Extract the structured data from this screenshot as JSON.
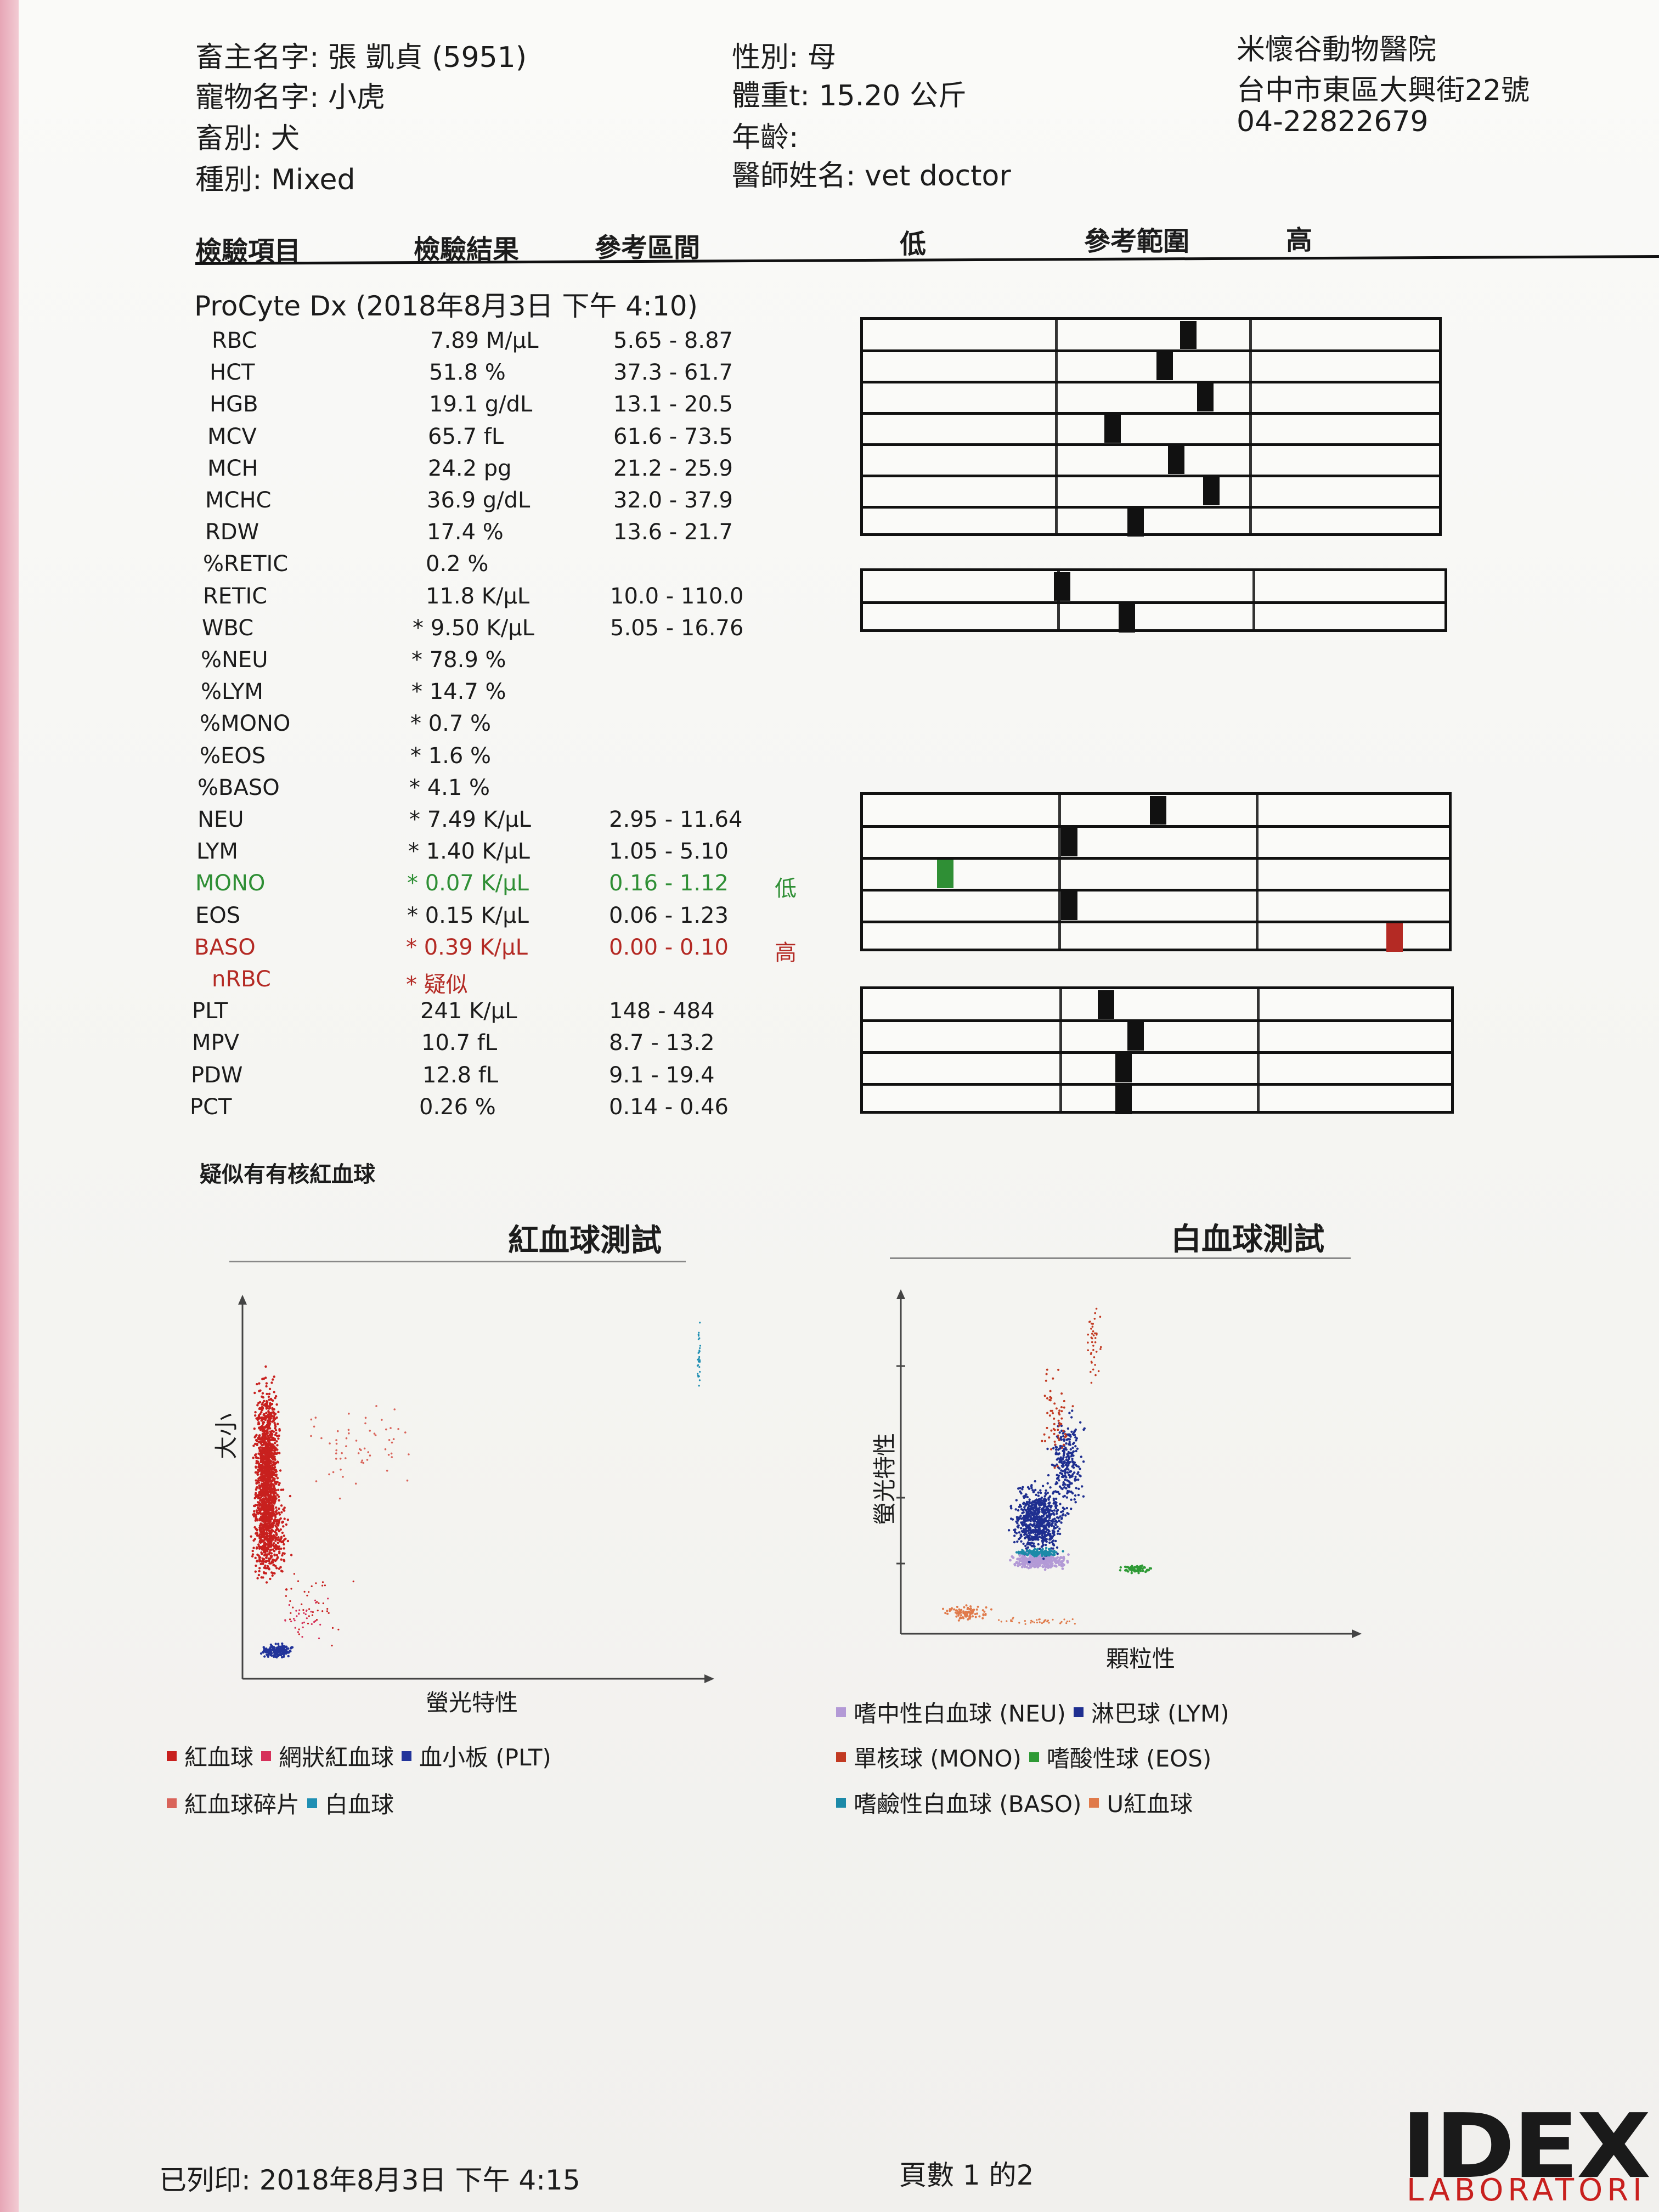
{
  "header": {
    "owner": "畜主名字: 張 凱貞 (5951)",
    "pet": "寵物名字: 小虎",
    "species": "畜別: 犬",
    "breed": "種別: Mixed",
    "sex": "性別: 母",
    "weight": "體重t: 15.20 公斤",
    "age": "年齡:",
    "doctor": "醫師姓名: vet doctor",
    "clinic_name": "米懷谷動物醫院",
    "clinic_address": "台中市東區大興街22號",
    "clinic_phone": "04-22822679"
  },
  "columns": {
    "item": "檢驗項目",
    "result": "檢驗結果",
    "interval": "參考區間",
    "low": "低",
    "range": "參考範圍",
    "high": "高"
  },
  "section_title": "ProCyte Dx (2018年8月3日 下午 4:10)",
  "results": [
    {
      "name": "RBC",
      "value": "7.89 M/µL",
      "ref": "5.65 - 8.87",
      "flag": "",
      "status": "normal"
    },
    {
      "name": "HCT",
      "value": "51.8 %",
      "ref": "37.3 - 61.7",
      "flag": "",
      "status": "normal"
    },
    {
      "name": "HGB",
      "value": "19.1 g/dL",
      "ref": "13.1 - 20.5",
      "flag": "",
      "status": "normal"
    },
    {
      "name": "MCV",
      "value": "65.7 fL",
      "ref": "61.6 - 73.5",
      "flag": "",
      "status": "normal"
    },
    {
      "name": "MCH",
      "value": "24.2 pg",
      "ref": "21.2 - 25.9",
      "flag": "",
      "status": "normal"
    },
    {
      "name": "MCHC",
      "value": "36.9 g/dL",
      "ref": "32.0 - 37.9",
      "flag": "",
      "status": "normal"
    },
    {
      "name": "RDW",
      "value": "17.4 %",
      "ref": "13.6 - 21.7",
      "flag": "",
      "status": "normal"
    },
    {
      "name": "%RETIC",
      "value": "0.2 %",
      "ref": "",
      "flag": "",
      "status": "normal"
    },
    {
      "name": "RETIC",
      "value": "11.8 K/µL",
      "ref": "10.0 - 110.0",
      "flag": "",
      "status": "normal"
    },
    {
      "name": "WBC",
      "value": "* 9.50 K/µL",
      "ref": "5.05 - 16.76",
      "flag": "",
      "status": "normal"
    },
    {
      "name": "%NEU",
      "value": "* 78.9 %",
      "ref": "",
      "flag": "",
      "status": "normal"
    },
    {
      "name": "%LYM",
      "value": "* 14.7 %",
      "ref": "",
      "flag": "",
      "status": "normal"
    },
    {
      "name": "%MONO",
      "value": "* 0.7 %",
      "ref": "",
      "flag": "",
      "status": "normal"
    },
    {
      "name": "%EOS",
      "value": "* 1.6 %",
      "ref": "",
      "flag": "",
      "status": "normal"
    },
    {
      "name": "%BASO",
      "value": "* 4.1 %",
      "ref": "",
      "flag": "",
      "status": "normal"
    },
    {
      "name": "NEU",
      "value": "* 7.49 K/µL",
      "ref": "2.95 - 11.64",
      "flag": "",
      "status": "normal"
    },
    {
      "name": "LYM",
      "value": "* 1.40 K/µL",
      "ref": "1.05 - 5.10",
      "flag": "",
      "status": "normal"
    },
    {
      "name": "MONO",
      "value": "* 0.07 K/µL",
      "ref": "0.16 - 1.12",
      "flag": "低",
      "status": "low"
    },
    {
      "name": "EOS",
      "value": "* 0.15 K/µL",
      "ref": "0.06 - 1.23",
      "flag": "",
      "status": "normal"
    },
    {
      "name": "BASO",
      "value": "* 0.39 K/µL",
      "ref": "0.00 - 0.10",
      "flag": "高",
      "status": "high"
    },
    {
      "name": "nRBC",
      "value": "* 疑似",
      "ref": "",
      "flag": "",
      "status": "high"
    },
    {
      "name": "PLT",
      "value": "241 K/µL",
      "ref": "148 - 484",
      "flag": "",
      "status": "normal"
    },
    {
      "name": "MPV",
      "value": "10.7 fL",
      "ref": "8.7 - 13.2",
      "flag": "",
      "status": "normal"
    },
    {
      "name": "PDW",
      "value": "12.8 fL",
      "ref": "9.1 - 19.4",
      "flag": "",
      "status": "normal"
    },
    {
      "name": "PCT",
      "value": "0.26 %",
      "ref": "0.14 - 0.46",
      "flag": "",
      "status": "normal"
    }
  ],
  "range_bars": [
    {
      "group": 1,
      "items": [
        {
          "name": "RBC",
          "position": 0.56,
          "status": "normal"
        },
        {
          "name": "HCT",
          "position": 0.52,
          "status": "normal"
        },
        {
          "name": "HGB",
          "position": 0.59,
          "status": "normal"
        },
        {
          "name": "MCV",
          "position": 0.43,
          "status": "normal"
        },
        {
          "name": "MCH",
          "position": 0.54,
          "status": "normal"
        },
        {
          "name": "MCHC",
          "position": 0.6,
          "status": "normal"
        },
        {
          "name": "RDW",
          "position": 0.47,
          "status": "normal"
        }
      ]
    },
    {
      "group": 2,
      "items": [
        {
          "name": "RETIC",
          "position": 0.34,
          "status": "normal"
        },
        {
          "name": "WBC",
          "position": 0.45,
          "status": "normal"
        }
      ]
    },
    {
      "group": 3,
      "items": [
        {
          "name": "NEU",
          "position": 0.5,
          "status": "normal"
        },
        {
          "name": "LYM",
          "position": 0.35,
          "status": "normal"
        },
        {
          "name": "MONO",
          "position": 0.14,
          "status": "low"
        },
        {
          "name": "EOS",
          "position": 0.35,
          "status": "normal"
        },
        {
          "name": "BASO",
          "position": 0.9,
          "status": "high"
        }
      ]
    },
    {
      "group": 4,
      "items": [
        {
          "name": "PLT",
          "position": 0.41,
          "status": "normal"
        },
        {
          "name": "MPV",
          "position": 0.46,
          "status": "normal"
        },
        {
          "name": "PDW",
          "position": 0.44,
          "status": "normal"
        },
        {
          "name": "PCT",
          "position": 0.44,
          "status": "normal"
        }
      ]
    }
  ],
  "note": "疑似有有核紅血球",
  "rbc_chart": {
    "title": "紅血球測試",
    "ylabel": "大小",
    "xlabel": "螢光特性",
    "legend": [
      "紅血球",
      "網狀紅血球",
      "血小板 (PLT)",
      "紅血球碎片",
      "白血球"
    ]
  },
  "wbc_chart": {
    "title": "白血球測試",
    "ylabel": "螢光特性",
    "xlabel": "顆粒性",
    "legend": [
      "嗜中性白血球 (NEU)",
      "淋巴球 (LYM)",
      "單核球 (MONO)",
      "嗜酸性球 (EOS)",
      "嗜鹼性白血球 (BASO)",
      "U紅血球"
    ]
  },
  "colors": {
    "low": "#2f8f35",
    "high": "#b42a24",
    "rbc": "#c8201e",
    "retic": "#d6305a",
    "plt": "#22349a",
    "rbc_frag": "#d9645a",
    "wbc": "#1f8fb3",
    "neu": "#b39ad6",
    "lym": "#1f2f90",
    "mono": "#c23a22",
    "eos": "#2e9a35",
    "baso": "#1c8aa8",
    "urbc": "#e07a4a"
  },
  "footer": {
    "printed": "已列印: 2018年8月3日 下午 4:15",
    "page": "頁數 1 的2",
    "logo_top": "IDEX",
    "logo_bottom": "LABORATORI"
  }
}
